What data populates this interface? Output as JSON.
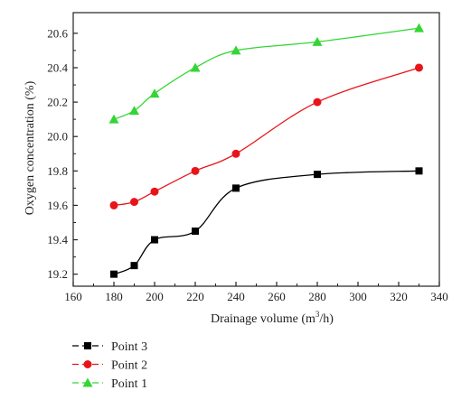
{
  "chart_data": {
    "type": "line",
    "title": "",
    "xlabel_main": "Drainage volume (m",
    "xlabel_sup": "3",
    "xlabel_tail": "/h)",
    "ylabel": "Oxygen concentration (%)",
    "xlim": [
      160,
      340
    ],
    "ylim": [
      19.13,
      20.72
    ],
    "x_ticks": [
      160,
      180,
      200,
      220,
      240,
      260,
      280,
      300,
      320,
      340
    ],
    "x_tick_labels": [
      "160",
      "180",
      "200",
      "220",
      "240",
      "260",
      "280",
      "300",
      "320",
      "340"
    ],
    "y_ticks": [
      19.2,
      19.4,
      19.6,
      19.8,
      20.0,
      20.2,
      20.4,
      20.6
    ],
    "y_tick_labels": [
      "19.2",
      "19.4",
      "19.6",
      "19.8",
      "20.0",
      "20.2",
      "20.4",
      "20.6"
    ],
    "grid": false,
    "legend_position": "bottom-left",
    "series": [
      {
        "name": "Point 3",
        "color": "#000000",
        "marker": "square",
        "line_style": "solid",
        "x": [
          180,
          190,
          200,
          220,
          240,
          280,
          330
        ],
        "y": [
          19.2,
          19.25,
          19.4,
          19.45,
          19.7,
          19.78,
          19.8
        ]
      },
      {
        "name": "Point 2",
        "color": "#e8141a",
        "marker": "circle",
        "line_style": "solid",
        "x": [
          180,
          190,
          200,
          220,
          240,
          280,
          330
        ],
        "y": [
          19.6,
          19.62,
          19.68,
          19.8,
          19.9,
          20.2,
          20.4
        ]
      },
      {
        "name": "Point 1",
        "color": "#33d633",
        "marker": "triangle",
        "line_style": "solid",
        "x": [
          180,
          190,
          200,
          220,
          240,
          280,
          330
        ],
        "y": [
          20.1,
          20.15,
          20.25,
          20.4,
          20.5,
          20.55,
          20.63
        ]
      }
    ]
  }
}
